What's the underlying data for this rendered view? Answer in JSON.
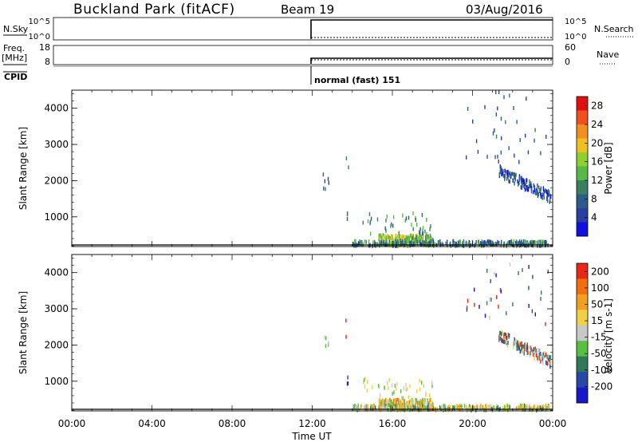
{
  "header": {
    "station": "Buckland Park (fitACF)",
    "beam": "Beam 19",
    "date": "03/Aug/2016"
  },
  "top_panels": {
    "nsky_label": "N.Sky",
    "nsearch_label": "N.Search",
    "nsky_ticks": [
      "10^5",
      "10^0"
    ],
    "nsearch_ticks": [
      "10^5",
      "10^0"
    ],
    "freq_label": "Freq.",
    "freq_unit": "[MHz]",
    "freq_ticks": [
      "18",
      "8"
    ],
    "nave_label": "Nave",
    "nave_ticks": [
      "60",
      "0"
    ],
    "cpid_label": "CPID",
    "cpid_text": "normal (fast) 151"
  },
  "chart_data": [
    {
      "type": "heatmap",
      "xlabel": "",
      "ylabel": "Slant Range [km]",
      "xlim": [
        0,
        24
      ],
      "ylim": [
        180,
        4500
      ],
      "y_ticks": [
        "1000",
        "2000",
        "3000",
        "4000"
      ],
      "colorbar": {
        "label": "Power [dB]",
        "range": [
          0,
          30
        ],
        "ticks": [
          "4",
          "8",
          "12",
          "16",
          "20",
          "24",
          "28"
        ],
        "colors": [
          "#1010e0",
          "#2a3fa0",
          "#2e5c8a",
          "#3a8060",
          "#58b848",
          "#8ed030",
          "#f0c020",
          "#f09020",
          "#f05020",
          "#e01010"
        ]
      }
    },
    {
      "type": "heatmap",
      "xlabel": "Time UT",
      "ylabel": "Slant Range [km]",
      "xlim": [
        0,
        24
      ],
      "ylim": [
        180,
        4500
      ],
      "x_ticks": [
        "00:00",
        "04:00",
        "08:00",
        "12:00",
        "16:00",
        "20:00",
        "00:00"
      ],
      "y_ticks": [
        "1000",
        "2000",
        "3000",
        "4000"
      ],
      "colorbar": {
        "label": "Velocity [m s-1]",
        "range": [
          -250,
          250
        ],
        "ticks": [
          "200",
          "100",
          "50",
          "15",
          "-15",
          "-50",
          "-100",
          "-200"
        ],
        "colors": [
          "#1818c8",
          "#2848a8",
          "#307858",
          "#58c040",
          "#c8c8c8",
          "#f0d048",
          "#f0a020",
          "#f07010",
          "#e82818"
        ]
      }
    }
  ]
}
